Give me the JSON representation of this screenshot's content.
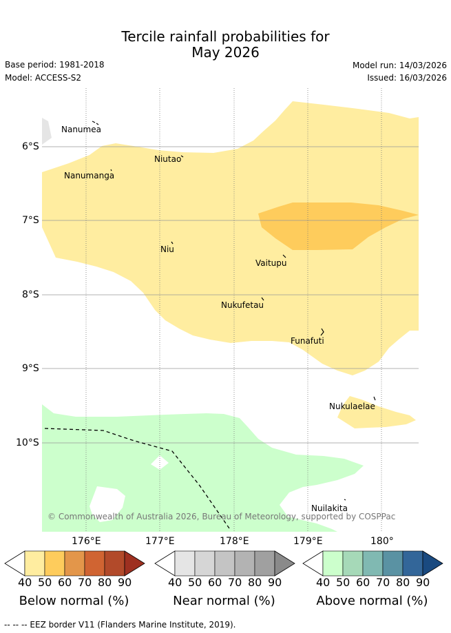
{
  "title_line1": "Tercile rainfall probabilities for",
  "title_line2": "May 2026",
  "meta": {
    "base_period": "Base period: 1981-2018",
    "model": "Model: ACCESS-S2",
    "model_run": "Model run: 14/03/2026",
    "issued": "Issued: 16/03/2026"
  },
  "map": {
    "lat_labels": [
      "6°S",
      "7°S",
      "8°S",
      "9°S",
      "10°S"
    ],
    "lon_labels": [
      "176°E",
      "177°E",
      "178°E",
      "179°E",
      "180°"
    ],
    "places": [
      "Nanumea",
      "Nanumanga",
      "Niutao",
      "Niu",
      "Vaitupu",
      "Nukufetau",
      "Funafuti",
      "Nukulaelae",
      "Nuilakita"
    ],
    "copyright": "© Commonwealth of Australia 2026, Bureau of Meteorology, supported by COSPPac"
  },
  "legend": {
    "ticks": [
      "40",
      "50",
      "60",
      "70",
      "80",
      "90"
    ],
    "below": {
      "title": "Below normal (%)",
      "colors": [
        "#ffffff",
        "#ffeda0",
        "#fecc5c",
        "#e3964a",
        "#d06432",
        "#b24a2a",
        "#9e3020"
      ]
    },
    "near": {
      "title": "Near normal (%)",
      "colors": [
        "#ffffff",
        "#e5e5e5",
        "#d6d6d6",
        "#c4c4c4",
        "#b3b3b3",
        "#a0a0a0",
        "#8a8a8a"
      ]
    },
    "above": {
      "title": "Above normal (%)",
      "colors": [
        "#ffffff",
        "#ccffcc",
        "#a6d9b8",
        "#80b9b2",
        "#5a92a3",
        "#336699",
        "#1a4a80"
      ]
    }
  },
  "footnote": "-- -- -- EEZ border V11 (Flanders Marine Institute, 2019)."
}
